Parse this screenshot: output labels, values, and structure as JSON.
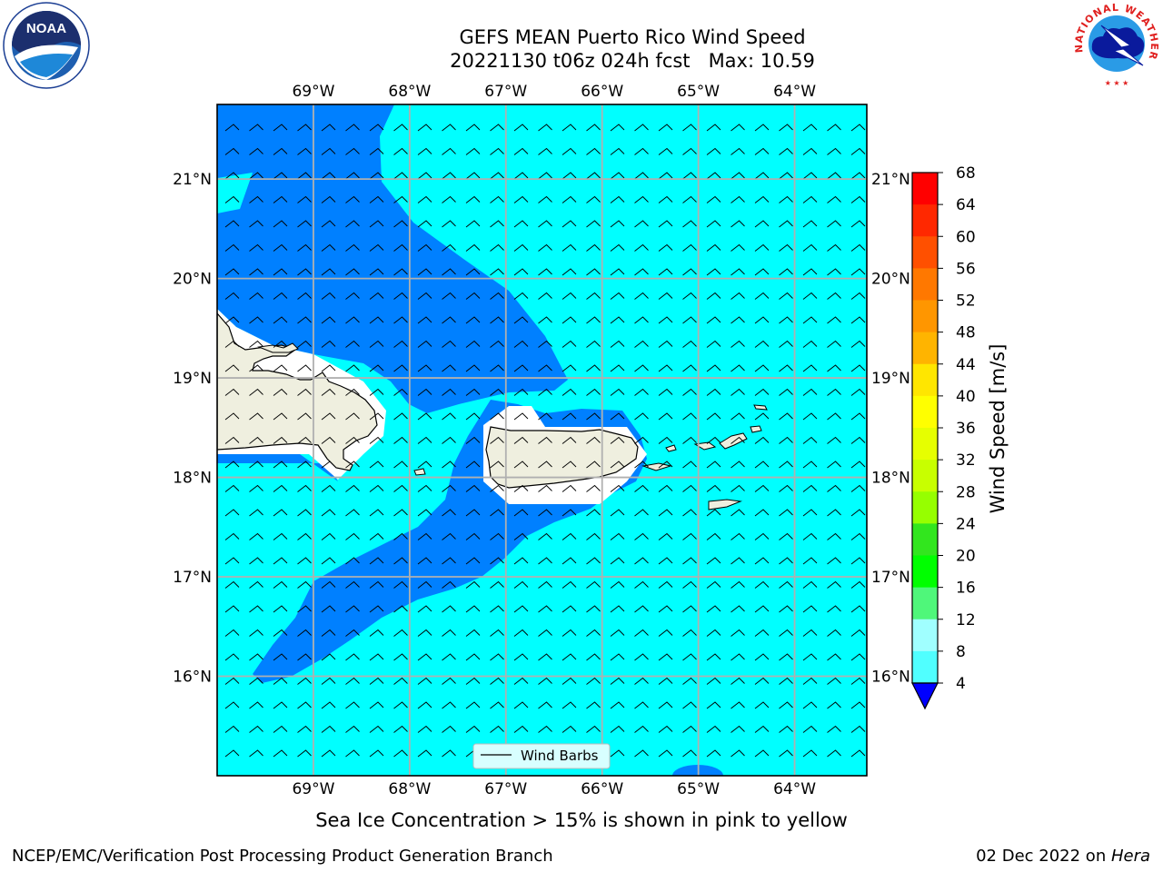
{
  "title": {
    "line1": "GEFS MEAN Puerto Rico Wind Speed",
    "line2": "20221130 t06z 024h fcst   Max: 10.59"
  },
  "caption": "Sea Ice Concentration > 15% is shown in pink to yellow",
  "footer": {
    "left": "NCEP/EMC/Verification Post Processing Product Generation Branch",
    "right_prefix": "02 Dec 2022 on ",
    "right_machine": "Hera"
  },
  "map": {
    "lon_range": [
      -70.0,
      -63.25
    ],
    "lat_range": [
      15.0,
      21.75
    ],
    "lon_ticks": [
      {
        "value": -69,
        "label": "69°W"
      },
      {
        "value": -68,
        "label": "68°W"
      },
      {
        "value": -67,
        "label": "67°W"
      },
      {
        "value": -66,
        "label": "66°W"
      },
      {
        "value": -65,
        "label": "65°W"
      },
      {
        "value": -64,
        "label": "64°W"
      }
    ],
    "lat_ticks": [
      {
        "value": 21,
        "label": "21°N"
      },
      {
        "value": 20,
        "label": "20°N"
      },
      {
        "value": 19,
        "label": "19°N"
      },
      {
        "value": 18,
        "label": "18°N"
      },
      {
        "value": 17,
        "label": "17°N"
      },
      {
        "value": 16,
        "label": "16°N"
      }
    ],
    "legend_label": "Wind Barbs",
    "ocean_color": "#00ffff",
    "low_wind_color": "#0080ff",
    "land_color": "#efefdf"
  },
  "colorbar": {
    "label": "Wind Speed [m/s]",
    "ticks": [
      "68",
      "64",
      "60",
      "56",
      "52",
      "48",
      "44",
      "40",
      "36",
      "32",
      "28",
      "24",
      "20",
      "16",
      "12",
      "8",
      "4"
    ],
    "colors": [
      "#ff0000",
      "#ff2800",
      "#ff5000",
      "#ff7800",
      "#ff9600",
      "#ffb400",
      "#ffe600",
      "#ffff00",
      "#e6ff00",
      "#c8ff00",
      "#96ff00",
      "#32e61e",
      "#00ff00",
      "#4ff77a",
      "#a0ffff",
      "#50ffff",
      "#00ffff",
      "#0080ff"
    ],
    "extend_color": "#0000ff"
  }
}
